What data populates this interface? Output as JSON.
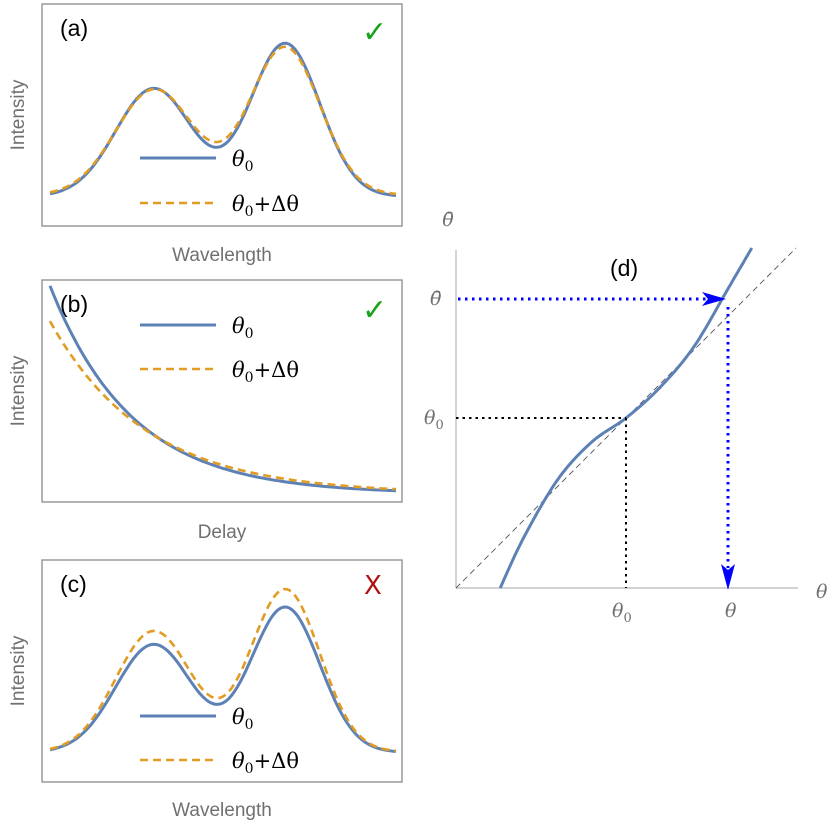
{
  "colors": {
    "solid": "#5e81b5",
    "dashed": "#e19c24",
    "arrow": "#0000ff",
    "check": "#1aa31a",
    "cross": "#b01010"
  },
  "chart_data": [
    {
      "id": "a",
      "type": "line",
      "panel_label": "(a)",
      "ylabel": "Intensity",
      "xlabel": "Wavelength",
      "status_mark": "✓",
      "status_color": "#1aa31a",
      "legend": [
        {
          "base": "θ",
          "sub": "0",
          "suffix": ""
        },
        {
          "base": "θ",
          "sub": "0",
          "suffix": "+Δθ"
        }
      ],
      "series": [
        {
          "name": "θ0",
          "style": "solid",
          "peaks": [
            {
              "center": 0.3,
              "width": 0.11,
              "height": 0.6
            },
            {
              "center": 0.68,
              "width": 0.1,
              "height": 0.85
            }
          ],
          "offset": 0.02,
          "scale": 1.0
        },
        {
          "name": "θ0+Δθ",
          "style": "dashed",
          "peaks": [
            {
              "center": 0.3,
              "width": 0.11,
              "height": 0.6
            },
            {
              "center": 0.68,
              "width": 0.1,
              "height": 0.85
            }
          ],
          "offset": 0.02,
          "scale": 0.93,
          "lift": 0.05
        }
      ]
    },
    {
      "id": "b",
      "type": "line",
      "panel_label": "(b)",
      "ylabel": "Intensity",
      "xlabel": "Delay",
      "status_mark": "✓",
      "status_color": "#1aa31a",
      "legend": [
        {
          "base": "θ",
          "sub": "0",
          "suffix": ""
        },
        {
          "base": "θ",
          "sub": "0",
          "suffix": "+Δθ"
        }
      ],
      "series": [
        {
          "name": "θ0",
          "style": "solid",
          "amplitude": 1.0,
          "rate": 4.2
        },
        {
          "name": "θ0+Δθ",
          "style": "dashed",
          "amplitude": 0.83,
          "rate": 3.6
        }
      ]
    },
    {
      "id": "c",
      "type": "line",
      "panel_label": "(c)",
      "ylabel": "Intensity",
      "xlabel": "Wavelength",
      "status_mark": "X",
      "status_color": "#b01010",
      "legend": [
        {
          "base": "θ",
          "sub": "0",
          "suffix": ""
        },
        {
          "base": "θ",
          "sub": "0",
          "suffix": "+Δθ"
        }
      ],
      "series": [
        {
          "name": "θ0",
          "style": "solid",
          "peaks": [
            {
              "center": 0.3,
              "width": 0.11,
              "height": 0.58
            },
            {
              "center": 0.68,
              "width": 0.1,
              "height": 0.78
            }
          ],
          "offset": 0.02,
          "scale": 1.0
        },
        {
          "name": "θ0+Δθ",
          "style": "dashed",
          "peaks": [
            {
              "center": 0.3,
              "width": 0.11,
              "height": 0.58
            },
            {
              "center": 0.68,
              "width": 0.1,
              "height": 0.78
            }
          ],
          "offset": 0.02,
          "scale": 1.12,
          "lift": 0.0
        }
      ]
    },
    {
      "id": "d",
      "type": "line",
      "panel_label": "(d)",
      "xaxis_label": "θ",
      "yaxis_label": "θ̄",
      "xlim": [
        0,
        1
      ],
      "ylim": [
        0,
        1
      ],
      "theta0": 0.5,
      "theta_read": 0.8,
      "theta_bar": 0.85,
      "tick_labels": {
        "x_theta0": "θ",
        "x_theta0_sub": "0",
        "x_theta": "θ",
        "y_theta0": "θ",
        "y_theta0_sub": "0",
        "y_thetabar": "θ̄"
      },
      "series": [
        {
          "name": "mapping",
          "style": "solid",
          "x": [
            0.13,
            0.2,
            0.3,
            0.4,
            0.5,
            0.6,
            0.7,
            0.8,
            0.87
          ],
          "y": [
            0.0,
            0.15,
            0.32,
            0.43,
            0.5,
            0.59,
            0.71,
            0.88,
            1.0
          ]
        },
        {
          "name": "identity",
          "style": "thin-dashed",
          "x": [
            0,
            1
          ],
          "y": [
            0,
            1
          ]
        }
      ]
    }
  ]
}
